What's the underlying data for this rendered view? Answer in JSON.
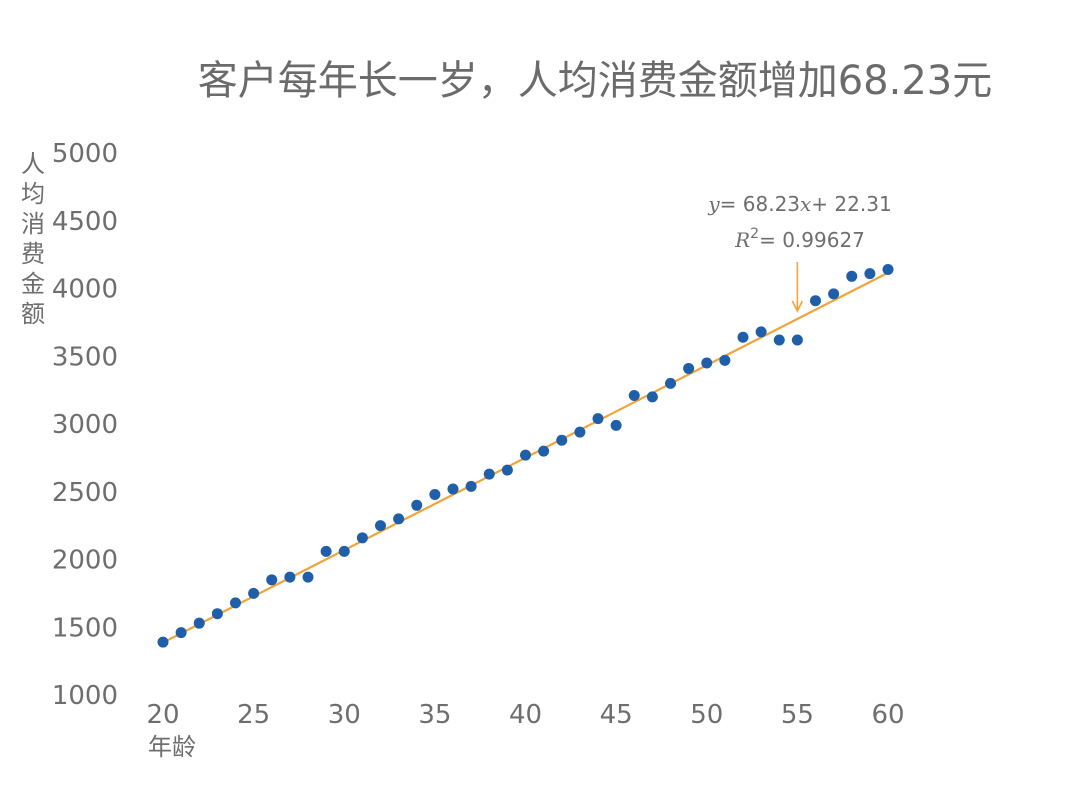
{
  "chart_data": {
    "type": "scatter",
    "title": "客户每年长一岁，人均消费金额增加68.23元",
    "xlabel": "年龄",
    "ylabel": "人均消费金额",
    "xlim": [
      20,
      60
    ],
    "ylim": [
      1000,
      5000
    ],
    "x_ticks": [
      20,
      25,
      30,
      35,
      40,
      45,
      50,
      55,
      60
    ],
    "y_ticks": [
      1000,
      1500,
      2000,
      2500,
      3000,
      3500,
      4000,
      4500,
      5000
    ],
    "grid": false,
    "series": [
      {
        "x": [
          20,
          21,
          22,
          23,
          24,
          25,
          26,
          27,
          28,
          29,
          30,
          31,
          32,
          33,
          34,
          35,
          36,
          37,
          38,
          39,
          40,
          41,
          42,
          43,
          44,
          45,
          46,
          47,
          48,
          49,
          50,
          51,
          52,
          53,
          54,
          55,
          56,
          57,
          58,
          59,
          60
        ],
        "y": [
          1390,
          1460,
          1530,
          1600,
          1680,
          1750,
          1850,
          1870,
          1870,
          2060,
          2060,
          2160,
          2250,
          2300,
          2400,
          2480,
          2520,
          2540,
          2630,
          2660,
          2770,
          2800,
          2880,
          2940,
          3040,
          2990,
          3210,
          3200,
          3300,
          3410,
          3450,
          3470,
          3640,
          3680,
          3620,
          3620,
          3910,
          3960,
          4090,
          4110,
          4140
        ],
        "color": "#1f5ea8"
      }
    ],
    "trendline": {
      "slope": 68.23,
      "intercept": 22.31,
      "color": "#f0a43a",
      "equation": "= 68.23",
      "equation_tail": "+ 22.31",
      "r2": "= 0.99627",
      "arrow_x": 55
    }
  }
}
